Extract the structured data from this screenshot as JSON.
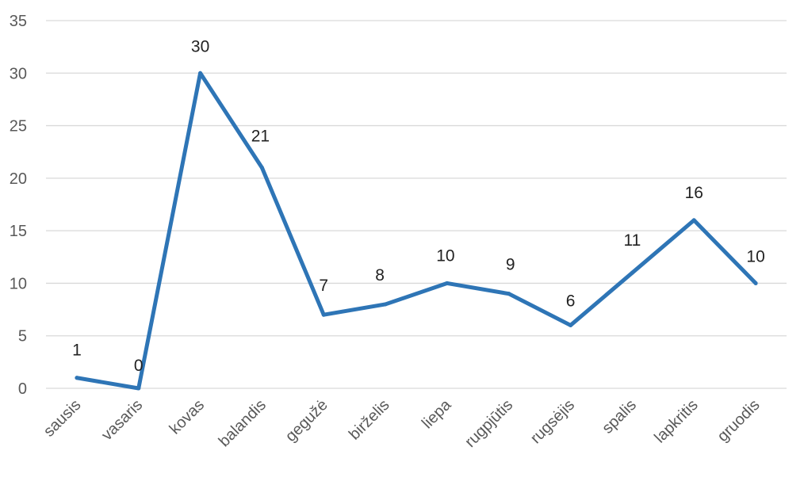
{
  "chart_data": {
    "type": "line",
    "title": "",
    "xlabel": "",
    "ylabel": "",
    "categories": [
      "sausis",
      "vasaris",
      "kovas",
      "balandis",
      "gegužė",
      "birželis",
      "liepa",
      "rugpjūtis",
      "rugsėjis",
      "spalis",
      "lapkritis",
      "gruodis"
    ],
    "series": [
      {
        "values": [
          1,
          0,
          30,
          21,
          7,
          8,
          10,
          9,
          6,
          11,
          16,
          10
        ]
      }
    ],
    "data_labels": [
      "1",
      "0",
      "30",
      "21",
      "7",
      "8",
      "10",
      "9",
      "6",
      "11",
      "16",
      "10"
    ],
    "ylim": [
      0,
      35
    ],
    "yticks": [
      0,
      5,
      10,
      15,
      20,
      25,
      30,
      35
    ],
    "ytick_labels": [
      "0",
      "5",
      "10",
      "15",
      "20",
      "25",
      "30",
      "35"
    ],
    "grid": true,
    "legend": "none",
    "colors": {
      "line": "#2e75b6",
      "grid": "#d9d9d9",
      "text": "#595959"
    }
  }
}
